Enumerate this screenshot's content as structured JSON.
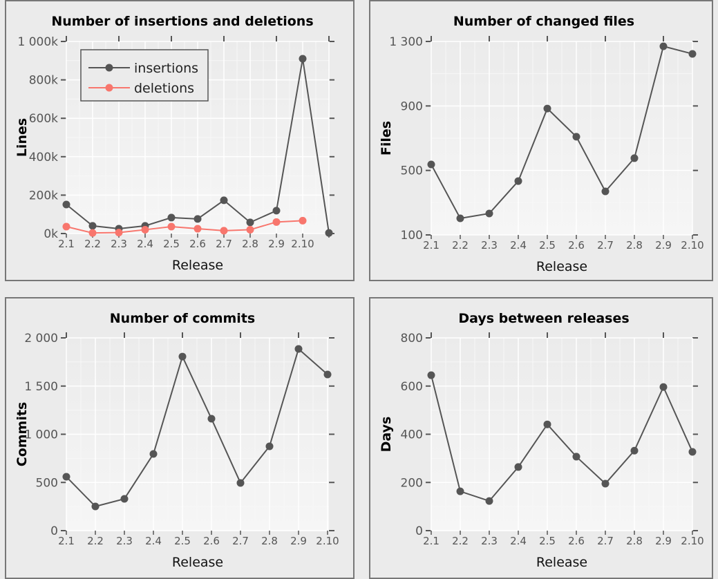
{
  "chart_data": [
    {
      "type": "line",
      "title": "Number of insertions and deletions",
      "xlabel": "Release",
      "ylabel": "Lines",
      "categories": [
        "2.1",
        "2.2",
        "2.3",
        "2.4",
        "2.5",
        "2.6",
        "2.7",
        "2.8",
        "2.9",
        "2.10",
        ""
      ],
      "ylim": [
        0,
        1000000
      ],
      "yticks": [
        0,
        200000,
        400000,
        600000,
        800000,
        1000000
      ],
      "ytick_labels": [
        "0k",
        "200k",
        "400k",
        "600k",
        "800k",
        "1 000k"
      ],
      "grid": true,
      "legend": "top-left",
      "series": [
        {
          "name": "insertions",
          "color": "#555555",
          "values": [
            151000,
            40000,
            25000,
            40000,
            83000,
            76000,
            173000,
            58000,
            119000,
            910000,
            3000
          ]
        },
        {
          "name": "deletions",
          "color": "#f8766d",
          "values": [
            36000,
            3000,
            5000,
            20000,
            36000,
            25000,
            15000,
            20000,
            60000,
            67000,
            null
          ]
        }
      ]
    },
    {
      "type": "line",
      "title": "Number of changed files",
      "xlabel": "Release",
      "ylabel": "Files",
      "categories": [
        "2.1",
        "2.2",
        "2.3",
        "2.4",
        "2.5",
        "2.6",
        "2.7",
        "2.8",
        "2.9",
        "2.10"
      ],
      "ylim": [
        100,
        1300
      ],
      "yticks": [
        100,
        500,
        900,
        1300
      ],
      "ytick_labels": [
        "100",
        "500",
        "900",
        "1 300"
      ],
      "grid": true,
      "series": [
        {
          "color": "#555555",
          "values": [
            537,
            203,
            233,
            434,
            884,
            709,
            370,
            576,
            1270,
            1223
          ]
        }
      ]
    },
    {
      "type": "line",
      "title": "Number of commits",
      "xlabel": "Release",
      "ylabel": "Commits",
      "categories": [
        "2.1",
        "2.2",
        "2.3",
        "2.4",
        "2.5",
        "2.6",
        "2.7",
        "2.8",
        "2.9",
        "2.10"
      ],
      "ylim": [
        0,
        2000
      ],
      "yticks": [
        0,
        500,
        1000,
        1500,
        2000
      ],
      "ytick_labels": [
        "0",
        "500",
        "1 000",
        "1 500",
        "2 000"
      ],
      "grid": true,
      "series": [
        {
          "color": "#555555",
          "values": [
            559,
            251,
            330,
            796,
            1806,
            1161,
            495,
            875,
            1885,
            1620
          ]
        }
      ]
    },
    {
      "type": "line",
      "title": "Days between releases",
      "xlabel": "Release",
      "ylabel": "Days",
      "categories": [
        "2.1",
        "2.2",
        "2.3",
        "2.4",
        "2.5",
        "2.6",
        "2.7",
        "2.8",
        "2.9",
        "2.10"
      ],
      "ylim": [
        0,
        800
      ],
      "yticks": [
        0,
        200,
        400,
        600,
        800
      ],
      "ytick_labels": [
        "0",
        "200",
        "400",
        "600",
        "800"
      ],
      "grid": true,
      "series": [
        {
          "color": "#555555",
          "values": [
            645,
            163,
            123,
            264,
            441,
            307,
            195,
            332,
            596,
            327
          ]
        }
      ]
    }
  ]
}
